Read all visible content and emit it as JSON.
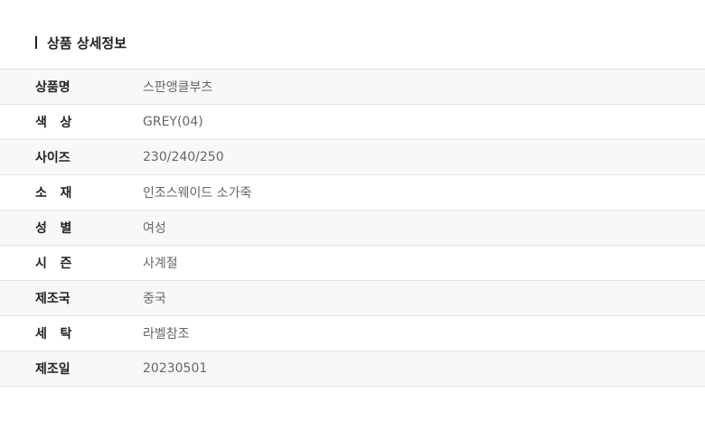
{
  "section_title": "상품 상세정보",
  "rows": [
    {
      "label": "상품명",
      "value": "스판앵클부츠"
    },
    {
      "label": "색   상",
      "value": "GREY(04)"
    },
    {
      "label": "사이즈",
      "value": "230/240/250"
    },
    {
      "label": "소   재",
      "value": "인조스웨이드 소가죽"
    },
    {
      "label": "성   별",
      "value": "여성"
    },
    {
      "label": "시   즌",
      "value": "사계절"
    },
    {
      "label": "제조국",
      "value": "중국"
    },
    {
      "label": "세   탁",
      "value": "라벨참조"
    },
    {
      "label": "제조일",
      "value": "20230501"
    }
  ]
}
